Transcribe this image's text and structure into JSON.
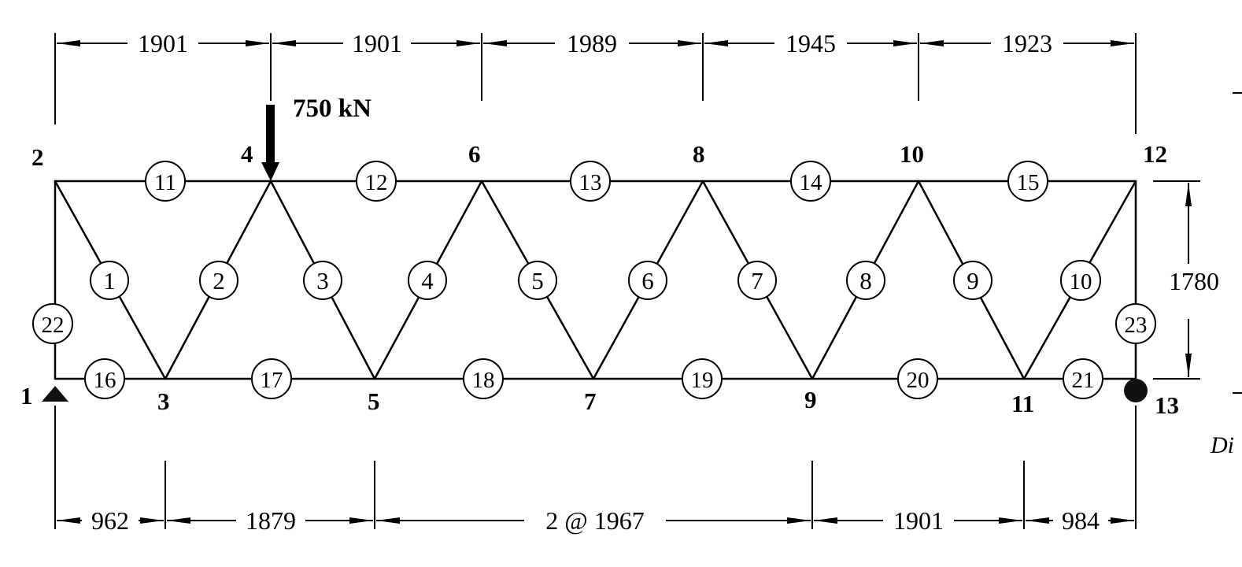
{
  "diagram": {
    "load": {
      "label": "750 kN",
      "node": "4"
    },
    "nodes": [
      {
        "id": "1",
        "label": "1"
      },
      {
        "id": "2",
        "label": "2"
      },
      {
        "id": "3",
        "label": "3"
      },
      {
        "id": "4",
        "label": "4"
      },
      {
        "id": "5",
        "label": "5"
      },
      {
        "id": "6",
        "label": "6"
      },
      {
        "id": "7",
        "label": "7"
      },
      {
        "id": "8",
        "label": "8"
      },
      {
        "id": "9",
        "label": "9"
      },
      {
        "id": "10",
        "label": "10"
      },
      {
        "id": "11",
        "label": "11"
      },
      {
        "id": "12",
        "label": "12"
      },
      {
        "id": "13",
        "label": "13"
      }
    ],
    "members": [
      {
        "label": "1",
        "from": "2",
        "to": "3"
      },
      {
        "label": "2",
        "from": "3",
        "to": "4"
      },
      {
        "label": "3",
        "from": "4",
        "to": "5"
      },
      {
        "label": "4",
        "from": "5",
        "to": "6"
      },
      {
        "label": "5",
        "from": "6",
        "to": "7"
      },
      {
        "label": "6",
        "from": "7",
        "to": "8"
      },
      {
        "label": "7",
        "from": "8",
        "to": "9"
      },
      {
        "label": "8",
        "from": "9",
        "to": "10"
      },
      {
        "label": "9",
        "from": "10",
        "to": "11"
      },
      {
        "label": "10",
        "from": "11",
        "to": "12"
      },
      {
        "label": "11",
        "from": "2",
        "to": "4"
      },
      {
        "label": "12",
        "from": "4",
        "to": "6"
      },
      {
        "label": "13",
        "from": "6",
        "to": "8"
      },
      {
        "label": "14",
        "from": "8",
        "to": "10"
      },
      {
        "label": "15",
        "from": "10",
        "to": "12"
      },
      {
        "label": "16",
        "from": "1",
        "to": "3"
      },
      {
        "label": "17",
        "from": "3",
        "to": "5"
      },
      {
        "label": "18",
        "from": "5",
        "to": "7"
      },
      {
        "label": "19",
        "from": "7",
        "to": "9"
      },
      {
        "label": "20",
        "from": "9",
        "to": "11"
      },
      {
        "label": "21",
        "from": "11",
        "to": "13"
      },
      {
        "label": "22",
        "from": "1",
        "to": "2"
      },
      {
        "label": "23",
        "from": "12",
        "to": "13"
      }
    ],
    "top_dimensions": [
      "1901",
      "1901",
      "1989",
      "1945",
      "1923"
    ],
    "bottom_dimensions": [
      "962",
      "1879",
      "2 @ 1967",
      "1901",
      "984"
    ],
    "height_dimension": "1780",
    "edge_fragments": [
      "Di"
    ]
  }
}
